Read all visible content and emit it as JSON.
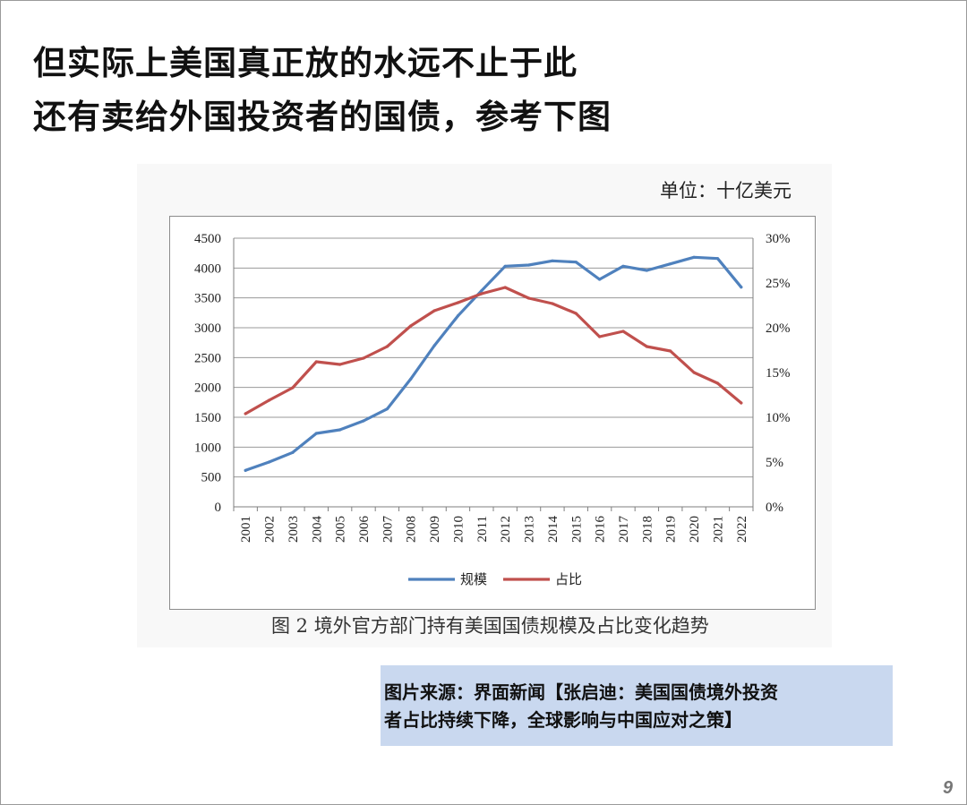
{
  "headline": {
    "line1": "但实际上美国真正放的水远不止于此",
    "line2": "还有卖给外国投资者的国债，参考下图"
  },
  "unit_label": "单位：十亿美元",
  "figure_caption": "图 2  境外官方部门持有美国国债规模及占比变化趋势",
  "source": {
    "line1": "图片来源：界面新闻【张启迪：美国国债境外投资",
    "line2": "者占比持续下降，全球影响与中国应对之策】"
  },
  "page_number": "9",
  "chart_data": {
    "type": "line",
    "categories": [
      "2001",
      "2002",
      "2003",
      "2004",
      "2005",
      "2006",
      "2007",
      "2008",
      "2009",
      "2010",
      "2011",
      "2012",
      "2013",
      "2014",
      "2015",
      "2016",
      "2017",
      "2018",
      "2019",
      "2020",
      "2021",
      "2022"
    ],
    "series": [
      {
        "name": "规模",
        "axis": "left",
        "color": "#4f81bd",
        "values": [
          610,
          750,
          910,
          1230,
          1290,
          1440,
          1640,
          2140,
          2700,
          3200,
          3620,
          4030,
          4050,
          4120,
          4100,
          3810,
          4030,
          3960,
          4070,
          4180,
          4160,
          3680
        ]
      },
      {
        "name": "占比",
        "axis": "right",
        "color": "#c0504d",
        "values": [
          10.4,
          11.9,
          13.3,
          16.2,
          15.9,
          16.6,
          17.9,
          20.2,
          21.9,
          22.8,
          23.8,
          24.5,
          23.3,
          22.7,
          21.6,
          19.0,
          19.6,
          17.9,
          17.4,
          15.0,
          13.8,
          11.6
        ]
      }
    ],
    "y_left": {
      "min": 0,
      "max": 4500,
      "ticks": [
        "0",
        "500",
        "1000",
        "1500",
        "2000",
        "2500",
        "3000",
        "3500",
        "4000",
        "4500"
      ]
    },
    "y_right": {
      "min": 0,
      "max": 30,
      "ticks": [
        "0%",
        "5%",
        "10%",
        "15%",
        "20%",
        "25%",
        "30%"
      ]
    },
    "grid": true,
    "legend_position": "bottom"
  }
}
